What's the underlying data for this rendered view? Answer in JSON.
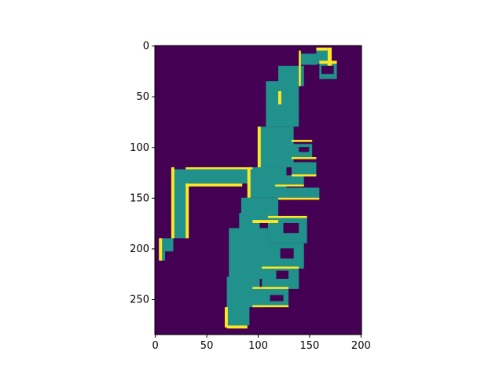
{
  "chart_data": {
    "type": "heatmap",
    "title": "",
    "xlabel": "",
    "ylabel": "",
    "x_ticks": [
      0,
      50,
      100,
      150,
      200
    ],
    "y_ticks": [
      0,
      50,
      100,
      150,
      200,
      250
    ],
    "xlim": [
      0,
      200
    ],
    "ylim": [
      284,
      0
    ],
    "grid": false,
    "colormap": "viridis",
    "colors": {
      "background": "#440154",
      "free": "#21918c",
      "wall": "#fde725"
    },
    "regions": {
      "free_rects": [
        [
          157,
          5,
          168,
          18
        ],
        [
          140,
          8,
          158,
          19
        ],
        [
          120,
          20,
          145,
          40
        ],
        [
          108,
          35,
          140,
          80
        ],
        [
          100,
          80,
          135,
          120
        ],
        [
          90,
          120,
          128,
          150
        ],
        [
          84,
          150,
          120,
          175
        ],
        [
          82,
          165,
          102,
          195
        ],
        [
          72,
          180,
          110,
          230
        ],
        [
          70,
          228,
          102,
          258
        ],
        [
          70,
          255,
          92,
          276
        ],
        [
          30,
          122,
          95,
          136
        ],
        [
          16,
          122,
          32,
          190
        ],
        [
          4,
          190,
          18,
          203
        ],
        [
          4,
          203,
          10,
          212
        ],
        [
          133,
          97,
          153,
          110
        ],
        [
          133,
          115,
          157,
          128
        ],
        [
          117,
          128,
          145,
          138
        ],
        [
          120,
          140,
          160,
          150
        ],
        [
          110,
          170,
          148,
          195
        ],
        [
          106,
          195,
          145,
          220
        ],
        [
          104,
          220,
          140,
          240
        ],
        [
          95,
          240,
          130,
          258
        ],
        [
          160,
          18,
          177,
          33
        ]
      ],
      "wall_rects": [
        [
          140,
          5,
          142,
          40
        ],
        [
          157,
          2,
          168,
          5
        ],
        [
          168,
          2,
          172,
          20
        ],
        [
          100,
          80,
          103,
          120
        ],
        [
          90,
          120,
          93,
          150
        ],
        [
          30,
          120,
          95,
          122
        ],
        [
          30,
          136,
          85,
          139
        ],
        [
          16,
          120,
          19,
          190
        ],
        [
          30,
          136,
          33,
          190
        ],
        [
          4,
          190,
          7,
          212
        ],
        [
          133,
          93,
          153,
          95
        ],
        [
          133,
          110,
          157,
          112
        ],
        [
          133,
          127,
          157,
          129
        ],
        [
          117,
          137,
          145,
          139
        ],
        [
          120,
          150,
          160,
          152
        ],
        [
          110,
          168,
          148,
          170
        ],
        [
          104,
          218,
          140,
          220
        ],
        [
          95,
          238,
          130,
          240
        ],
        [
          95,
          256,
          130,
          258
        ],
        [
          70,
          276,
          90,
          279
        ],
        [
          68,
          258,
          71,
          278
        ],
        [
          120,
          45,
          123,
          58
        ],
        [
          95,
          172,
          120,
          175
        ],
        [
          160,
          15,
          177,
          18
        ]
      ],
      "noise_rects": [
        [
          162,
          20,
          174,
          28
        ],
        [
          140,
          100,
          150,
          105
        ],
        [
          122,
          200,
          135,
          210
        ],
        [
          118,
          222,
          130,
          230
        ],
        [
          112,
          246,
          125,
          252
        ],
        [
          125,
          175,
          140,
          185
        ]
      ]
    }
  }
}
